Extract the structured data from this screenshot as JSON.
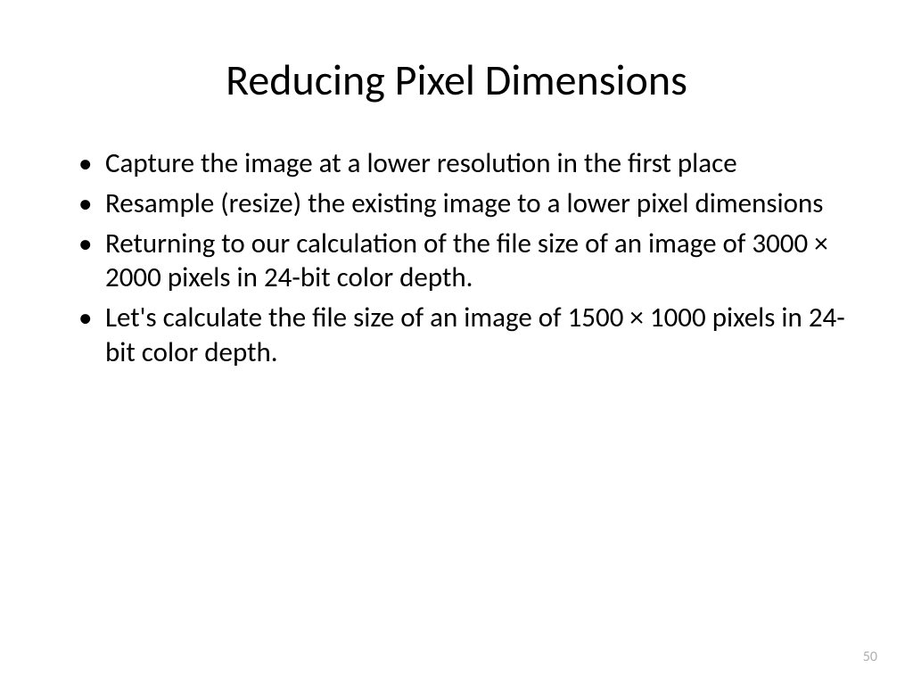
{
  "slide": {
    "title": "Reducing Pixel Dimensions",
    "bullets": [
      "Capture the image at a lower resolution in the first place",
      "Resample (resize) the existing image to a lower pixel dimensions",
      "Returning to our calculation of the file size of an image of 3000 × 2000 pixels in 24-bit color depth.",
      "Let's calculate the file size of an image of 1500 × 1000 pixels in 24-bit color depth."
    ],
    "page_number": "50"
  },
  "styling": {
    "background_color": "#ffffff",
    "text_color": "#000000",
    "page_number_color": "#b0b0b0",
    "title_fontsize": 48,
    "body_fontsize": 31,
    "page_number_fontsize": 16,
    "font_family": "Calibri"
  }
}
